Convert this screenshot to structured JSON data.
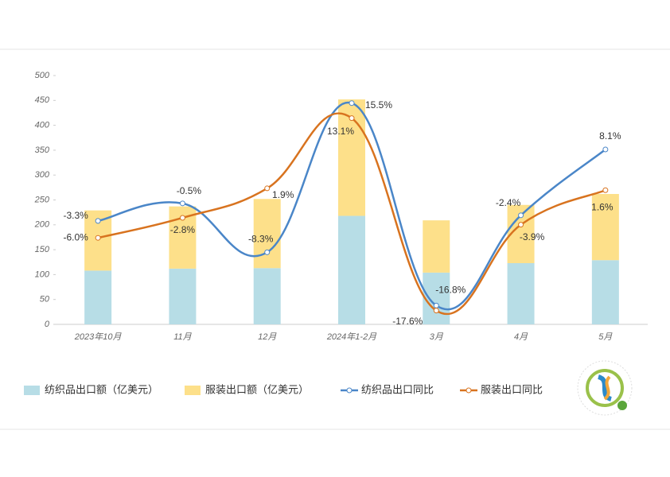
{
  "chart_data": {
    "type": "bar-line",
    "categories": [
      "2023年10月",
      "11月",
      "12月",
      "2024年1-2月",
      "3月",
      "4月",
      "5月"
    ],
    "series": [
      {
        "name": "纺织品出口额（亿美元）",
        "type": "bar",
        "color": "#b7dde6",
        "values": [
          108,
          112,
          113,
          218,
          104,
          123,
          129
        ]
      },
      {
        "name": "服装出口额（亿美元）",
        "type": "bar",
        "color": "#fde08a",
        "values": [
          121,
          125,
          139,
          234,
          105,
          117,
          133
        ]
      },
      {
        "name": "纺织品出口同比",
        "type": "line",
        "axis": "y2",
        "color": "#4a86c8",
        "values": [
          -3.3,
          -0.5,
          -8.3,
          15.5,
          -16.8,
          -2.4,
          8.1
        ],
        "value_labels": [
          "-3.3%",
          "-0.5%",
          "-8.3%",
          "15.5%",
          "-16.8%",
          "-2.4%",
          "8.1%"
        ]
      },
      {
        "name": "服装出口同比",
        "type": "line",
        "axis": "y2",
        "color": "#d8731f",
        "values": [
          -6.0,
          -2.8,
          1.9,
          13.1,
          -17.6,
          -3.9,
          1.6
        ],
        "value_labels": [
          "-6.0%",
          "-2.8%",
          "1.9%",
          "13.1%",
          "-17.6%",
          "-3.9%",
          "1.6%"
        ]
      }
    ],
    "ylim": [
      0,
      500
    ],
    "yticks": [
      0,
      50,
      100,
      150,
      200,
      250,
      300,
      350,
      400,
      450,
      500
    ],
    "y2lim": [
      -19.8,
      19.9
    ],
    "grid": false,
    "legend": "bottom"
  }
}
